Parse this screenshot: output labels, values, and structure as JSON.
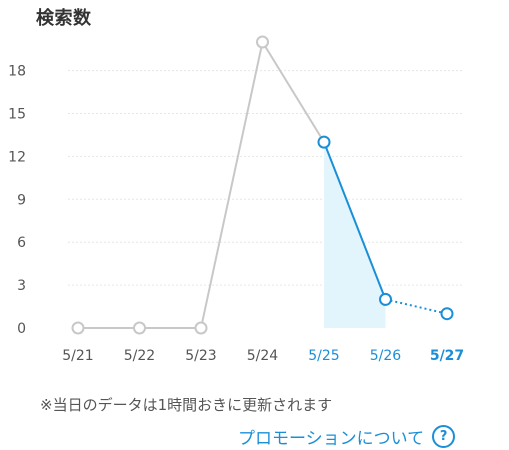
{
  "colors": {
    "past_line": "#c8c8c8",
    "recent_line": "#1a8fd8",
    "recent_fill": "#e2f4fc",
    "grid": "#e6e6e6",
    "tick_text": "#555555",
    "highlight_tick": "#1a8fd8"
  },
  "chart_data": {
    "type": "line",
    "title": "検索数",
    "xlabel": "",
    "ylabel": "",
    "categories": [
      "5/21",
      "5/22",
      "5/23",
      "5/24",
      "5/25",
      "5/26",
      "5/27"
    ],
    "values": [
      0,
      0,
      0,
      20,
      13,
      2,
      1
    ],
    "ylim": [
      0,
      20
    ],
    "yticks": [
      0,
      3,
      6,
      9,
      12,
      15,
      18
    ],
    "grid": true,
    "highlighted_categories": [
      "5/25",
      "5/26",
      "5/27"
    ],
    "bold_category": "5/27"
  },
  "footer": {
    "note": "※当日のデータは1時間おきに更新されます",
    "promo_link": "プロモーションについて",
    "help_icon": "?"
  }
}
